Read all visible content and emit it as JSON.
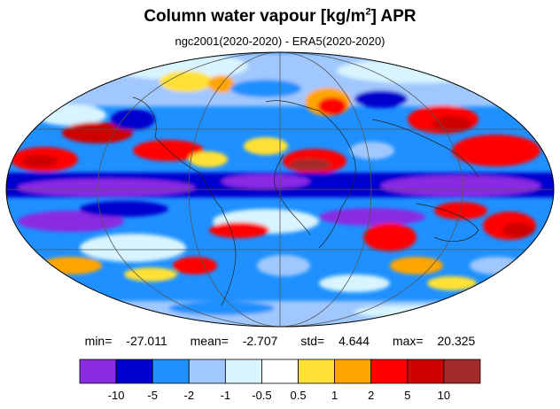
{
  "title": {
    "main": "Column water vapour [kg/m",
    "sup": "2",
    "tail": "] APR"
  },
  "subtitle": "ngc2001(2020-2020) - ERA5(2020-2020)",
  "stats": {
    "min_label": "min=",
    "min": "-27.011",
    "mean_label": "mean=",
    "mean": "-2.707",
    "std_label": "std=",
    "std": "4.644",
    "max_label": "max=",
    "max": "20.325"
  },
  "colorbar": {
    "colors": [
      "#8a2be2",
      "#0000cd",
      "#1e90ff",
      "#a0c8ff",
      "#d8f4ff",
      "#ffffff",
      "#ffe135",
      "#ffa500",
      "#ff0000",
      "#cd0000",
      "#a52a2a"
    ],
    "labels": [
      "-10",
      "-5",
      "-2",
      "-1",
      "-0.5",
      "0.5",
      "1",
      "2",
      "5",
      "10"
    ]
  }
}
